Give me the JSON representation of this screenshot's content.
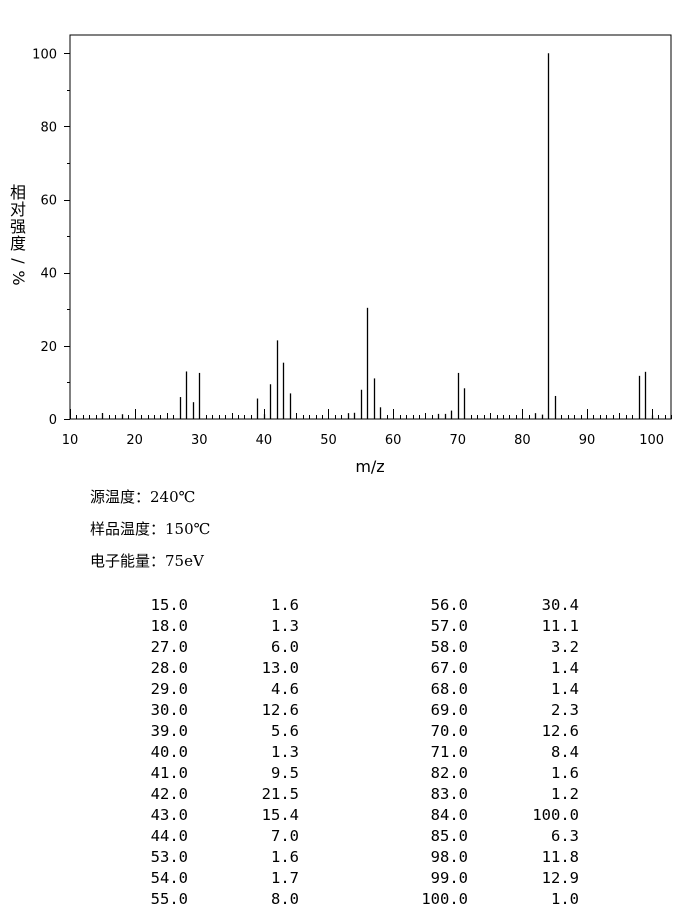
{
  "chart_data": {
    "type": "bar",
    "title": "",
    "xlabel": "m/z",
    "ylabel": "相对强度/%",
    "xlim": [
      10,
      103
    ],
    "ylim": [
      0,
      105
    ],
    "xticks": [
      "10",
      "20",
      "30",
      "40",
      "50",
      "60",
      "70",
      "80",
      "90",
      "100"
    ],
    "yticks": [
      "0",
      "20",
      "40",
      "60",
      "80",
      "100"
    ],
    "grid": false,
    "x": [
      15,
      18,
      27,
      28,
      29,
      30,
      39,
      40,
      41,
      42,
      43,
      44,
      53,
      54,
      55,
      56,
      57,
      58,
      67,
      68,
      69,
      70,
      71,
      82,
      83,
      84,
      85,
      98,
      99,
      100
    ],
    "values": [
      1.6,
      1.3,
      6.0,
      13.0,
      4.6,
      12.6,
      5.6,
      1.3,
      9.5,
      21.5,
      15.4,
      7.0,
      1.6,
      1.7,
      8.0,
      30.4,
      11.1,
      3.2,
      1.4,
      1.4,
      2.3,
      12.6,
      8.4,
      1.6,
      1.2,
      100.0,
      6.3,
      11.8,
      12.9,
      1.0
    ]
  },
  "conditions": {
    "source_temp": "源温度：240℃",
    "sample_temp": "样品温度：150℃",
    "electron_energy": "电子能量：75eV"
  },
  "table": {
    "left": [
      [
        "15.0",
        "1.6"
      ],
      [
        "18.0",
        "1.3"
      ],
      [
        "27.0",
        "6.0"
      ],
      [
        "28.0",
        "13.0"
      ],
      [
        "29.0",
        "4.6"
      ],
      [
        "30.0",
        "12.6"
      ],
      [
        "39.0",
        "5.6"
      ],
      [
        "40.0",
        "1.3"
      ],
      [
        "41.0",
        "9.5"
      ],
      [
        "42.0",
        "21.5"
      ],
      [
        "43.0",
        "15.4"
      ],
      [
        "44.0",
        "7.0"
      ],
      [
        "53.0",
        "1.6"
      ],
      [
        "54.0",
        "1.7"
      ],
      [
        "55.0",
        "8.0"
      ]
    ],
    "right": [
      [
        "56.0",
        "30.4"
      ],
      [
        "57.0",
        "11.1"
      ],
      [
        "58.0",
        "3.2"
      ],
      [
        "67.0",
        "1.4"
      ],
      [
        "68.0",
        "1.4"
      ],
      [
        "69.0",
        "2.3"
      ],
      [
        "70.0",
        "12.6"
      ],
      [
        "71.0",
        "8.4"
      ],
      [
        "82.0",
        "1.6"
      ],
      [
        "83.0",
        "1.2"
      ],
      [
        "84.0",
        "100.0"
      ],
      [
        "85.0",
        "6.3"
      ],
      [
        "98.0",
        "11.8"
      ],
      [
        "99.0",
        "12.9"
      ],
      [
        "100.0",
        "1.0"
      ]
    ]
  }
}
